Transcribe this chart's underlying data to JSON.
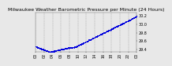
{
  "title": "Milwaukee Weather Barometric Pressure per Minute (24 Hours)",
  "dot_color": "#0000dd",
  "background_color": "#e8e8e8",
  "plot_bg_color": "#e8e8e8",
  "grid_color": "#999999",
  "ylim": [
    29.35,
    30.28
  ],
  "xlim": [
    0,
    1440
  ],
  "ytick_values": [
    29.4,
    29.6,
    29.8,
    30.0,
    30.2
  ],
  "ytick_labels": [
    "29.4",
    "29.6",
    "29.8",
    "30.0",
    "30.2"
  ],
  "num_points": 1440,
  "x_tick_interval": 120,
  "title_fontsize": 4.5,
  "tick_fontsize": 3.5,
  "dot_size": 0.5,
  "noise_std": 0.006
}
